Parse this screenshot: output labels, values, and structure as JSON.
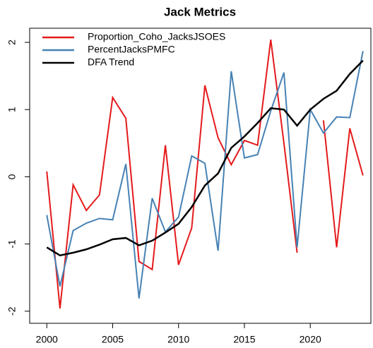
{
  "chart_data": {
    "type": "line",
    "title": "Jack Metrics",
    "x": [
      2000,
      2001,
      2002,
      2003,
      2004,
      2005,
      2006,
      2007,
      2008,
      2009,
      2010,
      2011,
      2012,
      2013,
      2014,
      2015,
      2016,
      2017,
      2018,
      2019,
      2020,
      2021,
      2022,
      2023,
      2024
    ],
    "series": [
      {
        "name": "Proportion_Coho_JacksJSOES",
        "color": "#e41a1c",
        "values": [
          0.08,
          -1.96,
          -0.12,
          -0.5,
          -0.27,
          1.18,
          0.87,
          -1.26,
          -1.38,
          0.47,
          -1.31,
          -0.76,
          1.36,
          0.58,
          0.18,
          0.54,
          0.47,
          2.04,
          0.5,
          -1.13,
          null,
          0.84,
          -1.05,
          0.72,
          0.02
        ]
      },
      {
        "name": "PercentJacksPMFC",
        "color": "#4682b4",
        "values": [
          -0.57,
          -1.63,
          -0.8,
          -0.69,
          -0.62,
          -0.64,
          0.19,
          -1.81,
          -0.32,
          -0.82,
          -0.6,
          0.31,
          0.2,
          -1.1,
          1.57,
          0.28,
          0.33,
          0.98,
          1.55,
          -1.05,
          1.0,
          0.65,
          0.89,
          0.88,
          1.87
        ]
      },
      {
        "name": "DFA Trend",
        "color": "#000000",
        "values": [
          -1.05,
          -1.17,
          -1.13,
          -1.08,
          -1.01,
          -0.93,
          -0.91,
          -1.02,
          -0.95,
          -0.83,
          -0.7,
          -0.45,
          -0.13,
          0.05,
          0.43,
          0.6,
          0.8,
          1.02,
          1.0,
          0.76,
          1.0,
          1.16,
          1.28,
          1.53,
          1.73
        ]
      }
    ],
    "xlim": [
      1998.7,
      2024.6
    ],
    "xticks": [
      2000,
      2005,
      2010,
      2015,
      2020
    ],
    "ylim": [
      -2.18,
      2.21
    ],
    "yticks": [
      -2,
      -1,
      0,
      1,
      2
    ],
    "legend": "top-left",
    "grid": false
  }
}
